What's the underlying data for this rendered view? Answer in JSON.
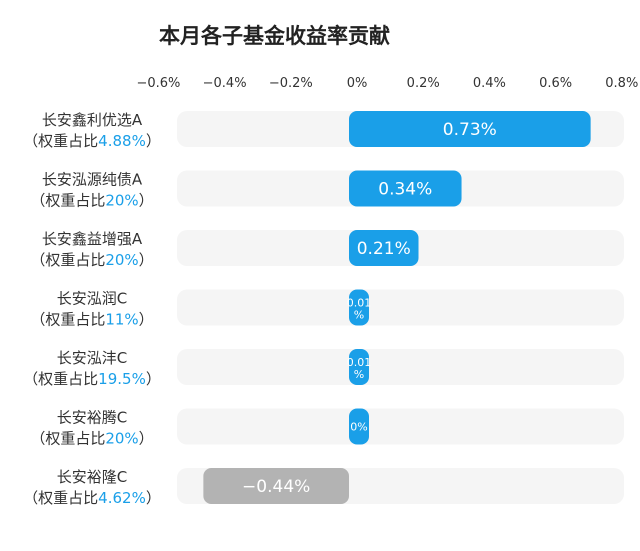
{
  "chart_data": {
    "type": "bar",
    "orientation": "horizontal",
    "title": "本月各子基金收益率贡献",
    "x_ticks": [
      "−0.6%",
      "−0.4%",
      "−0.2%",
      "0%",
      "0.2%",
      "0.4%",
      "0.6%",
      "0.8%"
    ],
    "xlim": [
      -0.6,
      0.8
    ],
    "categories": [
      {
        "name": "长安鑫利优选A",
        "weight_prefix": "（权重占比",
        "weight": "4.88%",
        "weight_suffix": "）"
      },
      {
        "name": "长安泓源纯债A",
        "weight_prefix": "（权重占比",
        "weight": "20%",
        "weight_suffix": "）"
      },
      {
        "name": "长安鑫益增强A",
        "weight_prefix": "（权重占比",
        "weight": "20%",
        "weight_suffix": "）"
      },
      {
        "name": "长安泓润C",
        "weight_prefix": "（权重占比",
        "weight": "11%",
        "weight_suffix": "）"
      },
      {
        "name": "长安泓沣C",
        "weight_prefix": "（权重占比",
        "weight": "19.5%",
        "weight_suffix": "）"
      },
      {
        "name": "长安裕腾C",
        "weight_prefix": "（权重占比",
        "weight": "20%",
        "weight_suffix": "）"
      },
      {
        "name": "长安裕隆C",
        "weight_prefix": "（权重占比",
        "weight": "4.62%",
        "weight_suffix": "）"
      }
    ],
    "values": [
      0.73,
      0.34,
      0.21,
      0.01,
      0.01,
      0.0,
      -0.44
    ],
    "value_labels": [
      "0.73%",
      "0.34%",
      "0.21%",
      "0.01%",
      "0.01%",
      "0%",
      "−0.44%"
    ],
    "colors": {
      "positive": "#1a9fe8",
      "negative": "#b3b3b3",
      "track": "#f5f5f5",
      "weight_text": "#1a9fe8"
    }
  }
}
